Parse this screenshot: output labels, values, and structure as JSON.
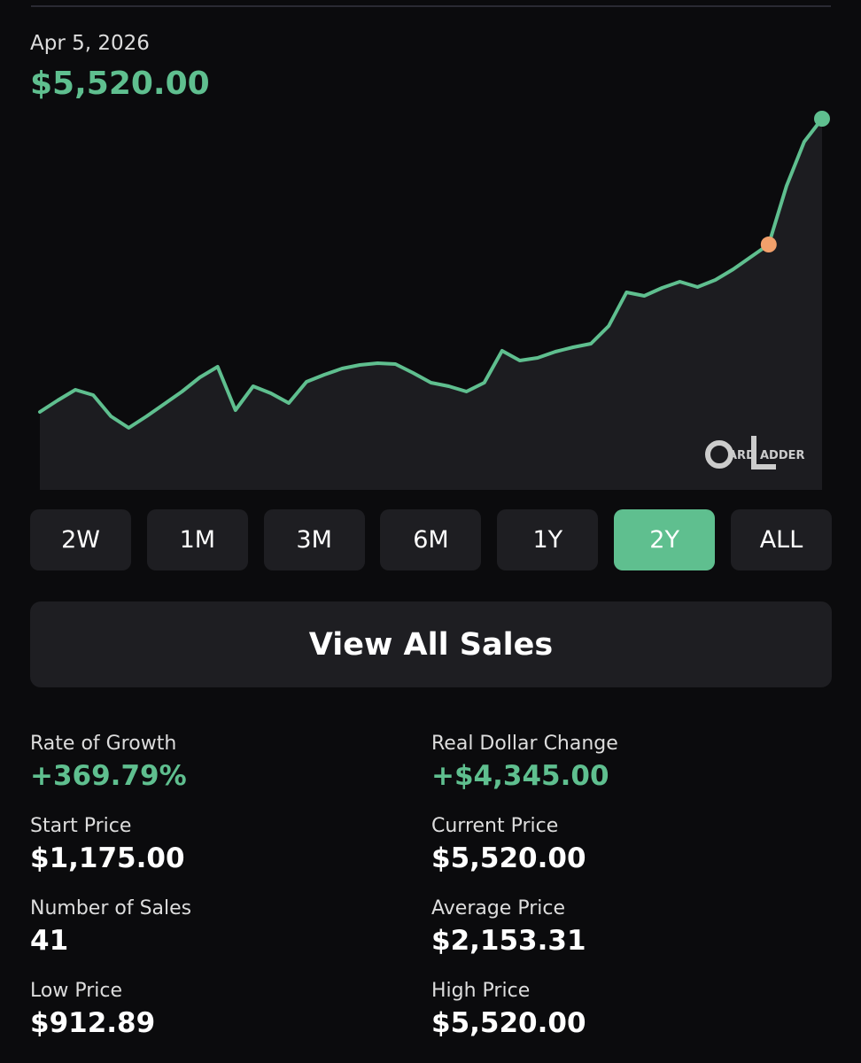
{
  "header": {
    "date": "Apr 5, 2026",
    "price": "$5,520.00"
  },
  "chart_data": {
    "type": "area",
    "values": [
      1175,
      1346,
      1503,
      1424,
      1109,
      939,
      1109,
      1293,
      1477,
      1687,
      1844,
      1201,
      1556,
      1451,
      1306,
      1621,
      1726,
      1818,
      1871,
      1897,
      1884,
      1753,
      1608,
      1556,
      1477,
      1608,
      2081,
      1936,
      1976,
      2068,
      2133,
      2186,
      2448,
      2947,
      2895,
      3013,
      3105,
      3026,
      3131,
      3288,
      3472,
      3656,
      4522,
      5179,
      5520
    ],
    "ylim": [
      20,
      5520
    ],
    "color": "#5fbf8f",
    "fill": "#1c1c20",
    "highlight": 41,
    "highlight_color": "#f2a06b",
    "watermark": [
      "ARD",
      "ADDER"
    ]
  },
  "ranges": {
    "options": [
      "2W",
      "1M",
      "3M",
      "6M",
      "1Y",
      "2Y",
      "ALL"
    ],
    "active": "2Y"
  },
  "view_all": "View All Sales",
  "stats": [
    {
      "label": "Rate of Growth",
      "value": "+369.79%"
    },
    {
      "label": "Real Dollar Change",
      "value": "+$4,345.00"
    },
    {
      "label": "Start Price",
      "value": "$1,175.00"
    },
    {
      "label": "Current Price",
      "value": "$5,520.00"
    },
    {
      "label": "Number of Sales",
      "value": "41"
    },
    {
      "label": "Average Price",
      "value": "$2,153.31"
    },
    {
      "label": "Low Price",
      "value": "$912.89"
    },
    {
      "label": "High Price",
      "value": "$5,520.00"
    }
  ]
}
